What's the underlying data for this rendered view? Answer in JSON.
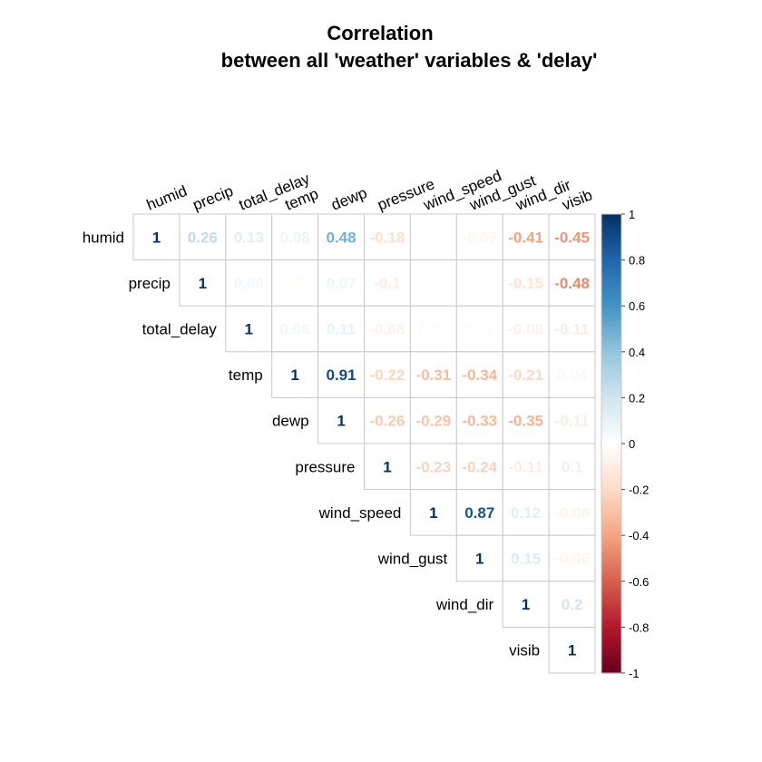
{
  "chart_data": {
    "type": "heatmap",
    "title_line1": "Correlation",
    "title_line2": "between all 'weather' variables & 'delay'",
    "variables": [
      "humid",
      "precip",
      "total_delay",
      "temp",
      "dewp",
      "pressure",
      "wind_speed",
      "wind_gust",
      "wind_dir",
      "visib"
    ],
    "matrix_upper": [
      [
        "1",
        "0.26",
        "0.13",
        "0.08",
        "0.48",
        "-0.18",
        "-0.01",
        "-0.05",
        "-0.41",
        "-0.45"
      ],
      [
        "1",
        "0.06",
        "-0.02",
        "0.07",
        "-0.1",
        "0",
        "0",
        "-0.15",
        "-0.48"
      ],
      [
        "1",
        "0.06",
        "0.11",
        "-0.08",
        "0.02",
        "0.02",
        "-0.08",
        "-0.11"
      ],
      [
        "1",
        "0.91",
        "-0.22",
        "-0.31",
        "-0.34",
        "-0.21",
        "0.04"
      ],
      [
        "1",
        "-0.26",
        "-0.29",
        "-0.33",
        "-0.35",
        "-0.11"
      ],
      [
        "1",
        "-0.23",
        "-0.24",
        "-0.11",
        "0.1"
      ],
      [
        "1",
        "0.87",
        "0.12",
        "-0.06"
      ],
      [
        "1",
        "0.15",
        "-0.06"
      ],
      [
        "1",
        "0.2"
      ],
      [
        "1"
      ]
    ],
    "colorbar": {
      "ticks": [
        "1",
        "0.8",
        "0.6",
        "0.4",
        "0.2",
        "0",
        "-0.2",
        "-0.4",
        "-0.6",
        "-0.8",
        "-1"
      ],
      "range": [
        -1,
        1
      ],
      "palette": [
        "#67001F",
        "#B2182B",
        "#D6604D",
        "#F4A582",
        "#FDDBC7",
        "#FFFFFF",
        "#D1E5F0",
        "#92C5DE",
        "#4393C3",
        "#2166AC",
        "#053061"
      ]
    },
    "grid": true,
    "legend": "right"
  }
}
